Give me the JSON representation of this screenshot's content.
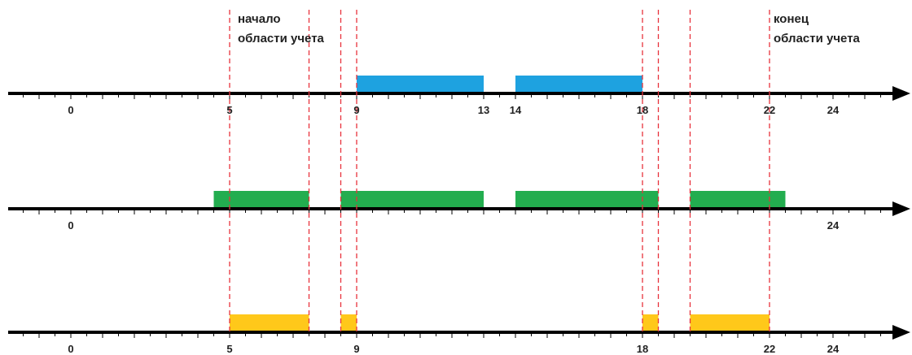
{
  "notes": {
    "start_line1": "начало",
    "start_line2": "области учета",
    "end_line1": "конец",
    "end_line2": "области учета"
  },
  "colors": {
    "axis": "#000000",
    "guide": "#e8323c",
    "blue": "#1ea2e0",
    "green": "#23ad4f",
    "yellow": "#ffc81a",
    "text": "#222222"
  },
  "scale": {
    "min": 0,
    "max": 24
  },
  "range": {
    "start": 5,
    "end": 22
  },
  "timelines": [
    {
      "name": "timeline-blue",
      "color": "blue",
      "segments": [
        [
          9,
          13
        ],
        [
          14,
          18
        ]
      ],
      "labels": [
        "0",
        "5",
        "9",
        "13",
        "14",
        "18",
        "22",
        "24"
      ]
    },
    {
      "name": "timeline-green",
      "color": "green",
      "segments": [
        [
          4.5,
          7.5
        ],
        [
          8.5,
          13
        ],
        [
          14,
          18.5
        ],
        [
          19.5,
          22.5
        ]
      ],
      "labels": [
        "0",
        "24"
      ]
    },
    {
      "name": "timeline-yellow",
      "color": "yellow",
      "segments": [
        [
          5,
          7.5
        ],
        [
          8.5,
          9
        ],
        [
          18,
          18.5
        ],
        [
          19.5,
          22
        ]
      ],
      "labels": [
        "0",
        "5",
        "9",
        "18",
        "22",
        "24"
      ]
    }
  ],
  "guides": [
    5,
    7.5,
    8.5,
    9,
    18,
    18.5,
    19.5,
    22
  ]
}
